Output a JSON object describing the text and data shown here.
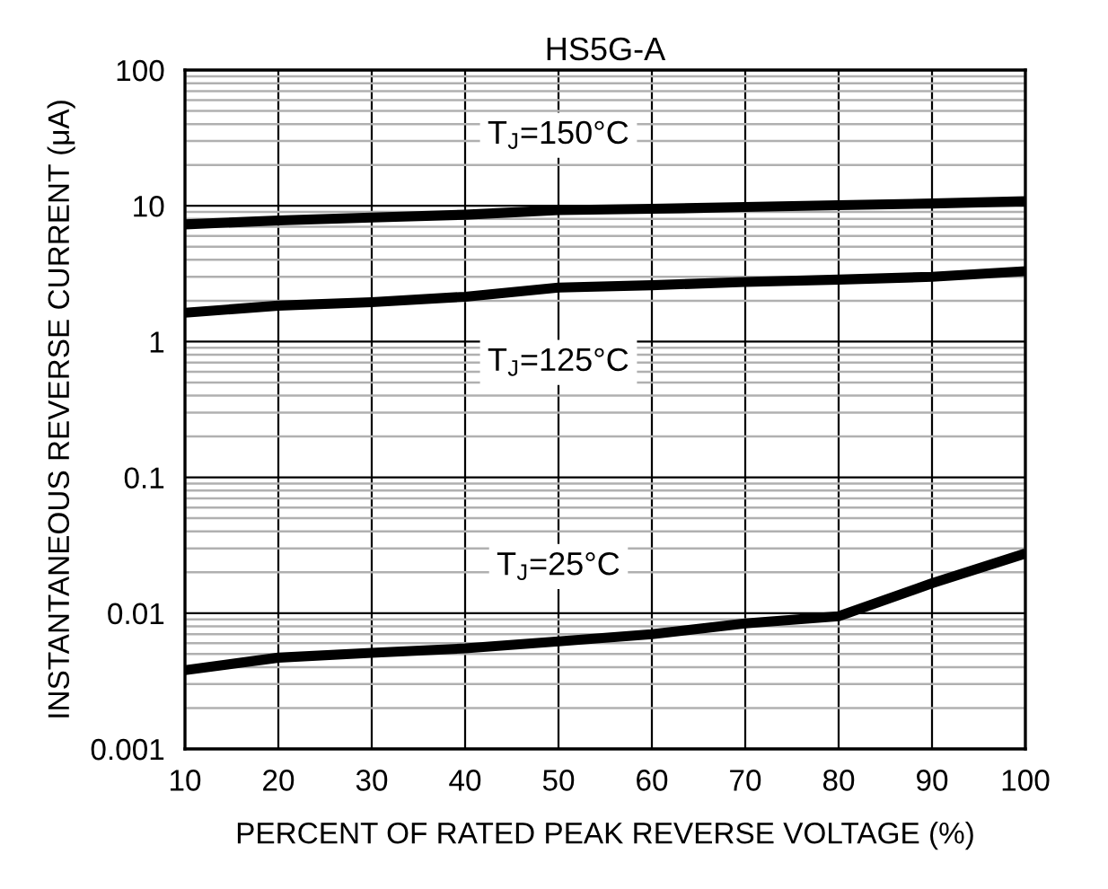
{
  "chart_data": {
    "type": "line",
    "title": "HS5G-A",
    "xlabel": "PERCENT OF RATED PEAK REVERSE VOLTAGE (%)",
    "ylabel": "INSTANTANEOUS REVERSE CURRENT (μA)",
    "x": [
      10,
      20,
      30,
      40,
      50,
      60,
      70,
      80,
      90,
      100
    ],
    "series": [
      {
        "name": "T$_{J}$=150°C",
        "color": "#000000",
        "values": [
          7.3,
          7.8,
          8.2,
          8.6,
          9.3,
          9.5,
          9.8,
          10.1,
          10.4,
          10.8
        ]
      },
      {
        "name": "T$_{J}$=125°C",
        "color": "#000000",
        "values": [
          1.63,
          1.84,
          1.95,
          2.14,
          2.5,
          2.6,
          2.75,
          2.86,
          3.0,
          3.3
        ]
      },
      {
        "name": "T$_{J}$=25°C",
        "color": "#000000",
        "values": [
          0.0038,
          0.0047,
          0.0051,
          0.0055,
          0.0062,
          0.007,
          0.0084,
          0.0095,
          0.0166,
          0.0275
        ]
      }
    ],
    "log": "y",
    "xlim": [
      10,
      100
    ],
    "ylim": [
      0.001,
      100
    ],
    "xticks": [
      10,
      20,
      30,
      40,
      50,
      60,
      70,
      80,
      90,
      100
    ],
    "yticks": [
      0.001,
      0.01,
      0.1,
      1,
      10,
      100
    ],
    "grid": true,
    "marker": "none",
    "line_style": "solid",
    "legend": false
  }
}
